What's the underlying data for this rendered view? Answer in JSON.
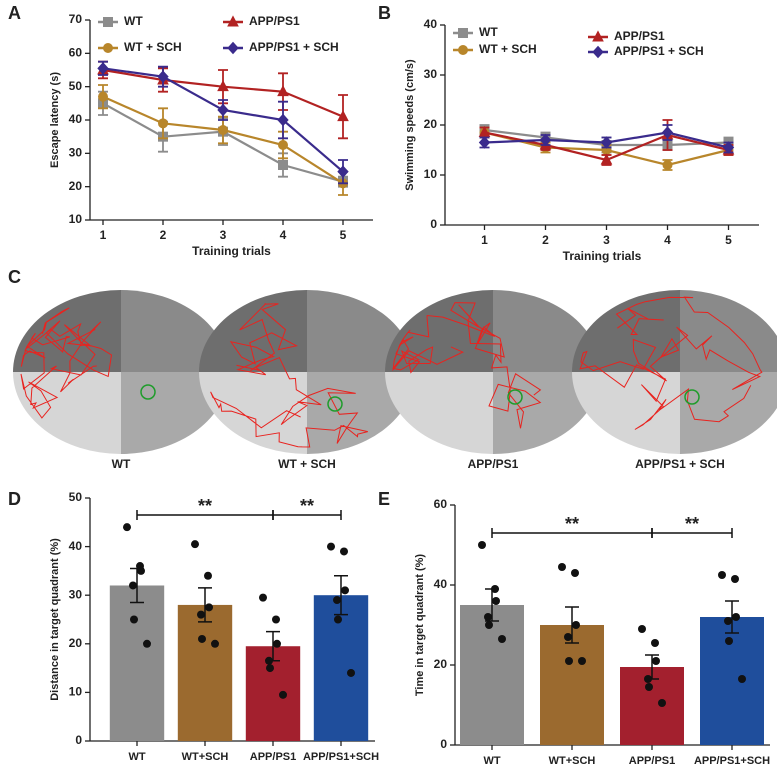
{
  "chart_data": [
    {
      "type": "line",
      "panel": "A",
      "ylabel": "Escape latency (s)",
      "xlabel": "Training trials",
      "categories": [
        "1",
        "2",
        "3",
        "4",
        "5"
      ],
      "ylim": [
        10,
        70
      ],
      "yticks": [
        10,
        20,
        30,
        40,
        50,
        60,
        70
      ],
      "series": [
        {
          "name": "WT",
          "color": "#8c8c8c",
          "marker": "square",
          "values": [
            45,
            35,
            36.5,
            26.5,
            21.5
          ],
          "errors": [
            3.5,
            4.5,
            4,
            3.5,
            1.5
          ]
        },
        {
          "name": "WT + SCH",
          "color": "#b8862b",
          "marker": "circle",
          "values": [
            47,
            39,
            37,
            32.5,
            21
          ],
          "errors": [
            3.5,
            4.5,
            4,
            4,
            3.5
          ]
        },
        {
          "name": "APP/PS1",
          "color": "#b22222",
          "marker": "triangle",
          "values": [
            55,
            52,
            50,
            48.5,
            41
          ],
          "errors": [
            2.5,
            3.5,
            5,
            5.5,
            6.5
          ]
        },
        {
          "name": "APP/PS1 + SCH",
          "color": "#3a2b8c",
          "marker": "diamond",
          "values": [
            55.5,
            53,
            43,
            40,
            24.5
          ],
          "errors": [
            2,
            3,
            3,
            5.5,
            3.5
          ]
        }
      ]
    },
    {
      "type": "line",
      "panel": "B",
      "ylabel": "Swimming speeds (cm/s)",
      "xlabel": "Training trials",
      "categories": [
        "1",
        "2",
        "3",
        "4",
        "5"
      ],
      "ylim": [
        0,
        40
      ],
      "yticks": [
        0,
        10,
        20,
        30,
        40
      ],
      "series": [
        {
          "name": "WT",
          "color": "#8c8c8c",
          "marker": "square",
          "values": [
            19,
            17.5,
            16,
            16,
            16.5
          ],
          "errors": [
            1,
            1,
            1.5,
            1,
            1
          ]
        },
        {
          "name": "WT + SCH",
          "color": "#b8862b",
          "marker": "circle",
          "values": [
            18.5,
            15.5,
            15,
            12,
            15
          ],
          "errors": [
            1,
            1,
            1,
            1,
            1
          ]
        },
        {
          "name": "APP/PS1",
          "color": "#b22222",
          "marker": "triangle",
          "values": [
            18.5,
            16,
            13,
            18,
            15
          ],
          "errors": [
            1,
            1,
            1,
            3,
            1
          ]
        },
        {
          "name": "APP/PS1 + SCH",
          "color": "#3a2b8c",
          "marker": "diamond",
          "values": [
            16.5,
            17,
            16.5,
            18.5,
            15.5
          ],
          "errors": [
            1,
            1,
            1,
            1.5,
            1
          ]
        }
      ]
    },
    {
      "type": "bar",
      "panel": "D",
      "ylabel": "Distance in target quadrant (%)",
      "categories": [
        "WT",
        "WT+SCH",
        "APP/PS1",
        "APP/PS1+SCH"
      ],
      "colors": [
        "#8c8c8c",
        "#9b6a2f",
        "#a3202e",
        "#1f4e9c"
      ],
      "values": [
        32,
        28,
        19.5,
        30
      ],
      "errors": [
        3.5,
        3.5,
        3,
        4
      ],
      "points": [
        [
          44,
          36,
          35,
          32,
          25,
          20
        ],
        [
          40.5,
          34,
          27.5,
          26,
          21,
          20
        ],
        [
          29.5,
          25,
          20,
          16.5,
          15,
          9.5
        ],
        [
          40,
          39,
          31,
          29,
          25,
          14
        ]
      ],
      "ylim": [
        0,
        50
      ],
      "yticks": [
        0,
        10,
        20,
        30,
        40,
        50
      ],
      "annotations": [
        {
          "text": "**",
          "between": [
            "WT",
            "APP/PS1"
          ]
        },
        {
          "text": "**",
          "between": [
            "APP/PS1",
            "APP/PS1+SCH"
          ]
        }
      ]
    },
    {
      "type": "bar",
      "panel": "E",
      "ylabel": "Time in target quadrant (%)",
      "categories": [
        "WT",
        "WT+SCH",
        "APP/PS1",
        "APP/PS1+SCH"
      ],
      "colors": [
        "#8c8c8c",
        "#9b6a2f",
        "#a3202e",
        "#1f4e9c"
      ],
      "values": [
        35,
        30,
        19.5,
        32
      ],
      "errors": [
        4,
        4.5,
        3,
        4
      ],
      "points": [
        [
          50,
          39,
          36,
          32,
          30,
          26.5
        ],
        [
          44.5,
          43,
          30,
          27,
          21,
          21
        ],
        [
          29,
          25.5,
          21,
          16.5,
          14.5,
          10.5
        ],
        [
          42.5,
          41.5,
          32,
          31,
          26,
          16.5
        ]
      ],
      "ylim": [
        0,
        60
      ],
      "yticks": [
        0,
        20,
        40,
        60
      ],
      "annotations": [
        {
          "text": "**",
          "between": [
            "WT",
            "APP/PS1"
          ]
        },
        {
          "text": "**",
          "between": [
            "APP/PS1",
            "APP/PS1+SCH"
          ]
        }
      ]
    }
  ],
  "panel_c": {
    "panel": "C",
    "labels": [
      "WT",
      "WT + SCH",
      "APP/PS1",
      "APP/PS1 + SCH"
    ]
  }
}
